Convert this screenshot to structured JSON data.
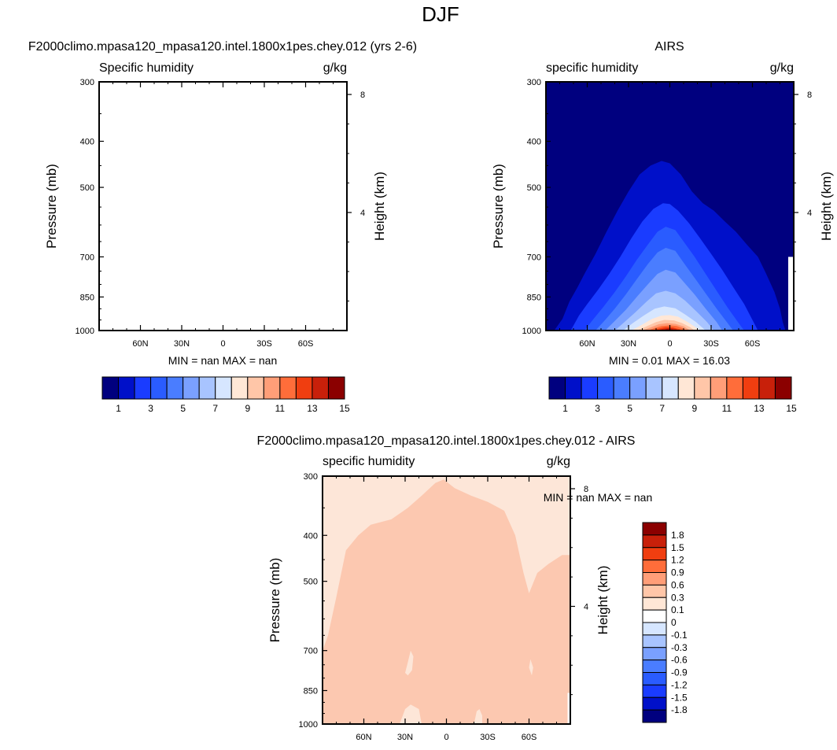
{
  "figure_title": "DJF",
  "chart_data": [
    {
      "type": "heatmap",
      "panel": "model",
      "title": "F2000climo.mpasa120_mpasa120.intel.1800x1pes.chey.012 (yrs 2-6)",
      "left_label": "Specific humidity",
      "right_label": "g/kg",
      "ylabel": "Pressure (mb)",
      "ylabel_right": "Height (km)",
      "y_ticks": [
        "300",
        "400",
        "500",
        "700",
        "850",
        "1000"
      ],
      "y_tick_values": [
        300,
        400,
        500,
        700,
        850,
        1000
      ],
      "height_ticks": [
        "8",
        "4"
      ],
      "height_tick_values": [
        8,
        4
      ],
      "x_ticks": [
        "60N",
        "30N",
        "0",
        "30S",
        "60S"
      ],
      "x_tick_values": [
        60,
        30,
        0,
        -30,
        -60
      ],
      "xlim": [
        90,
        -90
      ],
      "ylim": [
        1000,
        300
      ],
      "y_scale": "log",
      "stats": {
        "min_label": "MIN =",
        "min": "nan",
        "max_label": "MAX =",
        "max": "nan"
      },
      "data": "empty (all nan)",
      "colorbar": {
        "orientation": "horizontal",
        "labels": [
          "1",
          "3",
          "5",
          "7",
          "9",
          "11",
          "13",
          "15"
        ],
        "levels": [
          1,
          2,
          3,
          4,
          5,
          6,
          7,
          8,
          9,
          10,
          11,
          12,
          13,
          14,
          15
        ],
        "colors": [
          "#00007f",
          "#0010c9",
          "#1a3cff",
          "#2a5cff",
          "#4a7dff",
          "#7aa0ff",
          "#a8c4ff",
          "#d6e6ff",
          "#ffe7d6",
          "#ffc6a8",
          "#ff9e78",
          "#ff6d3a",
          "#f03e10",
          "#c8200a",
          "#8b0000"
        ]
      }
    },
    {
      "type": "heatmap",
      "panel": "obs",
      "title": "AIRS",
      "left_label": "specific humidity",
      "right_label": "g/kg",
      "ylabel": "Pressure (mb)",
      "ylabel_right": "Height (km)",
      "y_ticks": [
        "300",
        "400",
        "500",
        "700",
        "850",
        "1000"
      ],
      "y_tick_values": [
        300,
        400,
        500,
        700,
        850,
        1000
      ],
      "height_ticks": [
        "8",
        "4"
      ],
      "height_tick_values": [
        8,
        4
      ],
      "x_ticks": [
        "60N",
        "30N",
        "0",
        "30S",
        "60S"
      ],
      "x_tick_values": [
        60,
        30,
        0,
        -30,
        -60
      ],
      "xlim": [
        90,
        -90
      ],
      "ylim": [
        1000,
        300
      ],
      "y_scale": "log",
      "stats": {
        "min_label": "MIN =",
        "min": "0.01",
        "max_label": "MAX =",
        "max": "16.03"
      },
      "colorbar": {
        "orientation": "horizontal",
        "labels": [
          "1",
          "3",
          "5",
          "7",
          "9",
          "11",
          "13",
          "15"
        ],
        "levels": [
          1,
          2,
          3,
          4,
          5,
          6,
          7,
          8,
          9,
          10,
          11,
          12,
          13,
          14,
          15
        ],
        "colors": [
          "#00007f",
          "#0010c9",
          "#1a3cff",
          "#2a5cff",
          "#4a7dff",
          "#7aa0ff",
          "#a8c4ff",
          "#d6e6ff",
          "#ffe7d6",
          "#ffc6a8",
          "#ff9e78",
          "#ff6d3a",
          "#f03e10",
          "#c8200a",
          "#8b0000"
        ]
      },
      "contours": [
        {
          "level": 1,
          "points": [
            [
              84,
              1000
            ],
            [
              78,
              945
            ],
            [
              73,
              870
            ],
            [
              67,
              810
            ],
            [
              62,
              760
            ],
            [
              54,
              690
            ],
            [
              46,
              620
            ],
            [
              38,
              560
            ],
            [
              30,
              510
            ],
            [
              22,
              470
            ],
            [
              14,
              450
            ],
            [
              6,
              440
            ],
            [
              0,
              445
            ],
            [
              -8,
              470
            ],
            [
              -16,
              510
            ],
            [
              -24,
              540
            ],
            [
              -32,
              560
            ],
            [
              -40,
              590
            ],
            [
              -48,
              620
            ],
            [
              -56,
              660
            ],
            [
              -64,
              700
            ],
            [
              -70,
              760
            ],
            [
              -76,
              830
            ],
            [
              -80,
              900
            ],
            [
              -82,
              960
            ],
            [
              -84,
              1000
            ]
          ]
        },
        {
          "level": 2,
          "points": [
            [
              72,
              1000
            ],
            [
              66,
              930
            ],
            [
              60,
              880
            ],
            [
              52,
              820
            ],
            [
              44,
              760
            ],
            [
              36,
              700
            ],
            [
              28,
              640
            ],
            [
              20,
              590
            ],
            [
              12,
              555
            ],
            [
              5,
              540
            ],
            [
              0,
              542
            ],
            [
              -6,
              560
            ],
            [
              -14,
              595
            ],
            [
              -22,
              640
            ],
            [
              -30,
              690
            ],
            [
              -38,
              745
            ],
            [
              -46,
              810
            ],
            [
              -54,
              880
            ],
            [
              -60,
              950
            ],
            [
              -64,
              1000
            ]
          ]
        },
        {
          "level": 3,
          "points": [
            [
              62,
              1000
            ],
            [
              56,
              950
            ],
            [
              48,
              890
            ],
            [
              40,
              830
            ],
            [
              32,
              770
            ],
            [
              24,
              710
            ],
            [
              16,
              660
            ],
            [
              9,
              620
            ],
            [
              3,
              605
            ],
            [
              -4,
              615
            ],
            [
              -10,
              650
            ],
            [
              -18,
              700
            ],
            [
              -26,
              760
            ],
            [
              -34,
              825
            ],
            [
              -42,
              895
            ],
            [
              -50,
              965
            ],
            [
              -54,
              1000
            ]
          ]
        },
        {
          "level": 4,
          "points": [
            [
              54,
              1000
            ],
            [
              47,
              950
            ],
            [
              40,
              900
            ],
            [
              32,
              840
            ],
            [
              24,
              780
            ],
            [
              16,
              725
            ],
            [
              9,
              685
            ],
            [
              3,
              670
            ],
            [
              -4,
              680
            ],
            [
              -10,
              720
            ],
            [
              -18,
              775
            ],
            [
              -26,
              835
            ],
            [
              -34,
              900
            ],
            [
              -42,
              965
            ],
            [
              -46,
              1000
            ]
          ]
        },
        {
          "level": 5,
          "points": [
            [
              47,
              1000
            ],
            [
              40,
              955
            ],
            [
              32,
              905
            ],
            [
              24,
              850
            ],
            [
              16,
              800
            ],
            [
              9,
              760
            ],
            [
              3,
              745
            ],
            [
              -4,
              755
            ],
            [
              -10,
              790
            ],
            [
              -18,
              840
            ],
            [
              -26,
              900
            ],
            [
              -34,
              960
            ],
            [
              -38,
              1000
            ]
          ]
        },
        {
          "level": 6,
          "points": [
            [
              40,
              1000
            ],
            [
              33,
              960
            ],
            [
              25,
              915
            ],
            [
              17,
              870
            ],
            [
              10,
              835
            ],
            [
              3,
              825
            ],
            [
              -4,
              835
            ],
            [
              -11,
              865
            ],
            [
              -19,
              910
            ],
            [
              -27,
              960
            ],
            [
              -32,
              1000
            ]
          ]
        },
        {
          "level": 7,
          "points": [
            [
              34,
              1000
            ],
            [
              27,
              965
            ],
            [
              19,
              930
            ],
            [
              11,
              900
            ],
            [
              4,
              890
            ],
            [
              -4,
              898
            ],
            [
              -11,
              925
            ],
            [
              -19,
              960
            ],
            [
              -26,
              1000
            ]
          ]
        },
        {
          "level": 8,
          "points": [
            [
              28,
              1000
            ],
            [
              21,
              975
            ],
            [
              13,
              945
            ],
            [
              6,
              930
            ],
            [
              0,
              928
            ],
            [
              -6,
              935
            ],
            [
              -13,
              960
            ],
            [
              -20,
              990
            ],
            [
              -22,
              1000
            ]
          ]
        },
        {
          "level": 9,
          "points": [
            [
              24,
              1000
            ],
            [
              17,
              980
            ],
            [
              10,
              960
            ],
            [
              4,
              950
            ],
            [
              -3,
              952
            ],
            [
              -9,
              965
            ],
            [
              -15,
              985
            ],
            [
              -18,
              1000
            ]
          ]
        },
        {
          "level": 10,
          "points": [
            [
              20,
              1000
            ],
            [
              14,
              985
            ],
            [
              8,
              970
            ],
            [
              2,
              965
            ],
            [
              -4,
              968
            ],
            [
              -10,
              980
            ],
            [
              -15,
              1000
            ]
          ]
        },
        {
          "level": 11,
          "points": [
            [
              16,
              1000
            ],
            [
              11,
              988
            ],
            [
              6,
              978
            ],
            [
              0,
              975
            ],
            [
              -5,
              978
            ],
            [
              -10,
              990
            ],
            [
              -12,
              1000
            ]
          ]
        },
        {
          "level": 12,
          "points": [
            [
              13,
              1000
            ],
            [
              8,
              990
            ],
            [
              3,
              983
            ],
            [
              -2,
              985
            ],
            [
              -7,
              993
            ],
            [
              -9,
              1000
            ]
          ]
        },
        {
          "level": 13,
          "points": [
            [
              10,
              1000
            ],
            [
              5,
              992
            ],
            [
              0,
              988
            ],
            [
              -4,
              992
            ],
            [
              -7,
              1000
            ]
          ]
        },
        {
          "level": 14,
          "points": [
            [
              7,
              1000
            ],
            [
              2,
              994
            ],
            [
              -2,
              995
            ],
            [
              -5,
              1000
            ]
          ]
        }
      ]
    },
    {
      "type": "heatmap",
      "panel": "difference",
      "title": "F2000climo.mpasa120_mpasa120.intel.1800x1pes.chey.012 - AIRS",
      "left_label": "specific humidity",
      "right_label": "g/kg",
      "ylabel": "Pressure (mb)",
      "ylabel_right": "Height (km)",
      "y_ticks": [
        "300",
        "400",
        "500",
        "700",
        "850",
        "1000"
      ],
      "y_tick_values": [
        300,
        400,
        500,
        700,
        850,
        1000
      ],
      "height_ticks": [
        "8",
        "4"
      ],
      "height_tick_values": [
        8,
        4
      ],
      "x_ticks": [
        "60N",
        "30N",
        "0",
        "30S",
        "60S"
      ],
      "x_tick_values": [
        60,
        30,
        0,
        -30,
        -60
      ],
      "xlim": [
        90,
        -90
      ],
      "ylim": [
        1000,
        300
      ],
      "y_scale": "log",
      "stats": {
        "min_label": "MIN =",
        "min": "nan",
        "max_label": "MAX =",
        "max": "nan"
      },
      "background_color": "#fde6d8",
      "fill_color": "#fcc8b0",
      "fill_region": [
        [
          90,
          1000
        ],
        [
          90,
          700
        ],
        [
          86,
          650
        ],
        [
          80,
          540
        ],
        [
          73,
          430
        ],
        [
          64,
          400
        ],
        [
          55,
          380
        ],
        [
          40,
          370
        ],
        [
          28,
          350
        ],
        [
          18,
          330
        ],
        [
          8,
          310
        ],
        [
          2,
          305
        ],
        [
          -6,
          318
        ],
        [
          -18,
          330
        ],
        [
          -30,
          340
        ],
        [
          -42,
          355
        ],
        [
          -50,
          400
        ],
        [
          -56,
          480
        ],
        [
          -60,
          530
        ],
        [
          -66,
          480
        ],
        [
          -74,
          460
        ],
        [
          -84,
          440
        ],
        [
          -90,
          440
        ],
        [
          -90,
          1000
        ]
      ],
      "light_patches": [
        [
          [
            30,
            780
          ],
          [
            28,
            740
          ],
          [
            26,
            700
          ],
          [
            24,
            720
          ],
          [
            25,
            770
          ],
          [
            28,
            790
          ]
        ],
        [
          [
            -60,
            760
          ],
          [
            -61,
            730
          ],
          [
            -63,
            760
          ],
          [
            -62,
            790
          ]
        ],
        [
          [
            34,
            1000
          ],
          [
            30,
            930
          ],
          [
            26,
            910
          ],
          [
            20,
            930
          ],
          [
            18,
            1000
          ]
        ],
        [
          [
            -20,
            1000
          ],
          [
            -22,
            940
          ],
          [
            -24,
            930
          ],
          [
            -26,
            960
          ],
          [
            -26,
            1000
          ]
        ]
      ],
      "colorbar": {
        "orientation": "vertical",
        "labels": [
          "1.8",
          "1.5",
          "1.2",
          "0.9",
          "0.6",
          "0.3",
          "0.1",
          "0",
          "-0.1",
          "-0.3",
          "-0.6",
          "-0.9",
          "-1.2",
          "-1.5",
          "-1.8"
        ],
        "colors": [
          "#8b0000",
          "#c8200a",
          "#f03e10",
          "#ff6d3a",
          "#ff9e78",
          "#ffc6a8",
          "#ffe7d6",
          "#ffffff",
          "#d6e6ff",
          "#a8c4ff",
          "#7aa0ff",
          "#4a7dff",
          "#2a5cff",
          "#1a3cff",
          "#0010c9",
          "#00007f"
        ]
      }
    }
  ]
}
